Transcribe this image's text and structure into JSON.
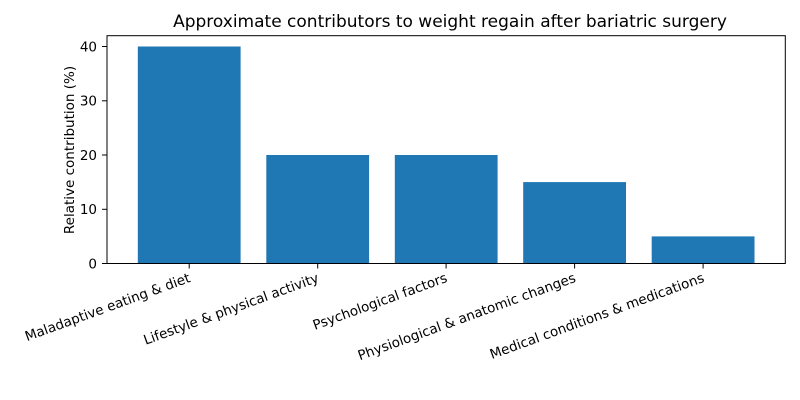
{
  "figure": {
    "background": "#ffffff"
  },
  "chart_data": {
    "type": "bar",
    "title": "Approximate contributors to weight regain after bariatric surgery",
    "categories": [
      "Maladaptive eating & diet",
      "Lifestyle & physical activity",
      "Psychological factors",
      "Physiological & anatomic changes",
      "Medical conditions & medications"
    ],
    "values": [
      40,
      20,
      20,
      15,
      5
    ],
    "xlabel": "",
    "ylabel": "Relative contribution (%)",
    "ylim": [
      0,
      42
    ],
    "yticks": [
      0,
      10,
      20,
      30,
      40
    ],
    "grid": false,
    "legend": false,
    "bar_color": "#1f77b4",
    "axis_color": "#000000",
    "text_color": "#000000",
    "x_tick_rotation_deg": 20
  }
}
